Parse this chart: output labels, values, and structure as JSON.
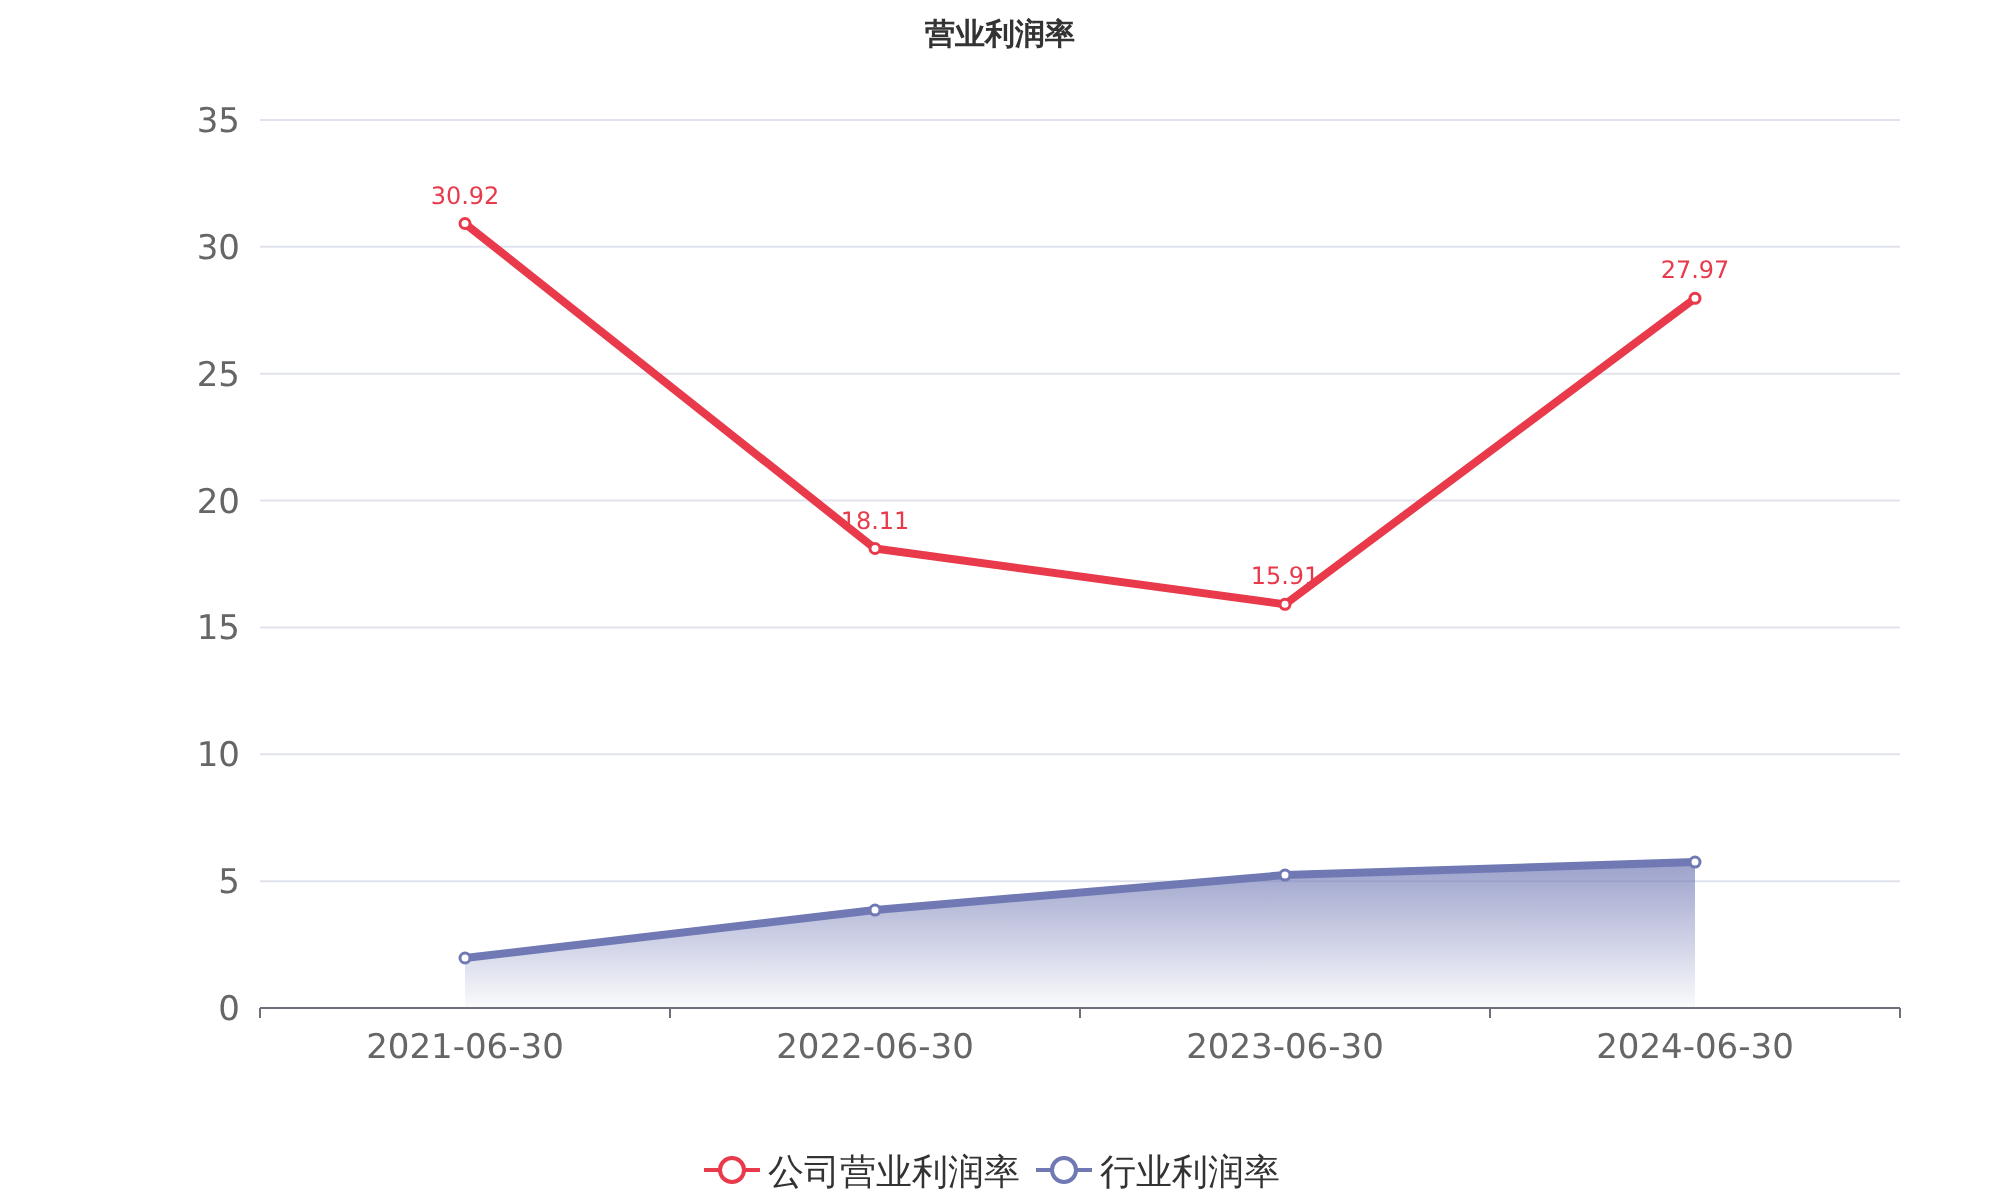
{
  "chart_data": {
    "type": "line",
    "title": "营业利润率",
    "categories": [
      "2021-06-30",
      "2022-06-30",
      "2023-06-30",
      "2024-06-30"
    ],
    "series": [
      {
        "name": "公司营业利润率",
        "color": "#e83a4a",
        "values": [
          30.92,
          18.11,
          15.91,
          27.97
        ],
        "data_labels": true
      },
      {
        "name": "行业利润率",
        "color": "#7079b4",
        "type": "area",
        "values": [
          1.97,
          3.86,
          5.24,
          5.75
        ]
      }
    ],
    "ylim": [
      0,
      35
    ],
    "yticks": [
      0,
      5,
      10,
      15,
      20,
      25,
      30,
      35
    ],
    "grid": "y",
    "legend": "bottom",
    "marker": "circle"
  }
}
